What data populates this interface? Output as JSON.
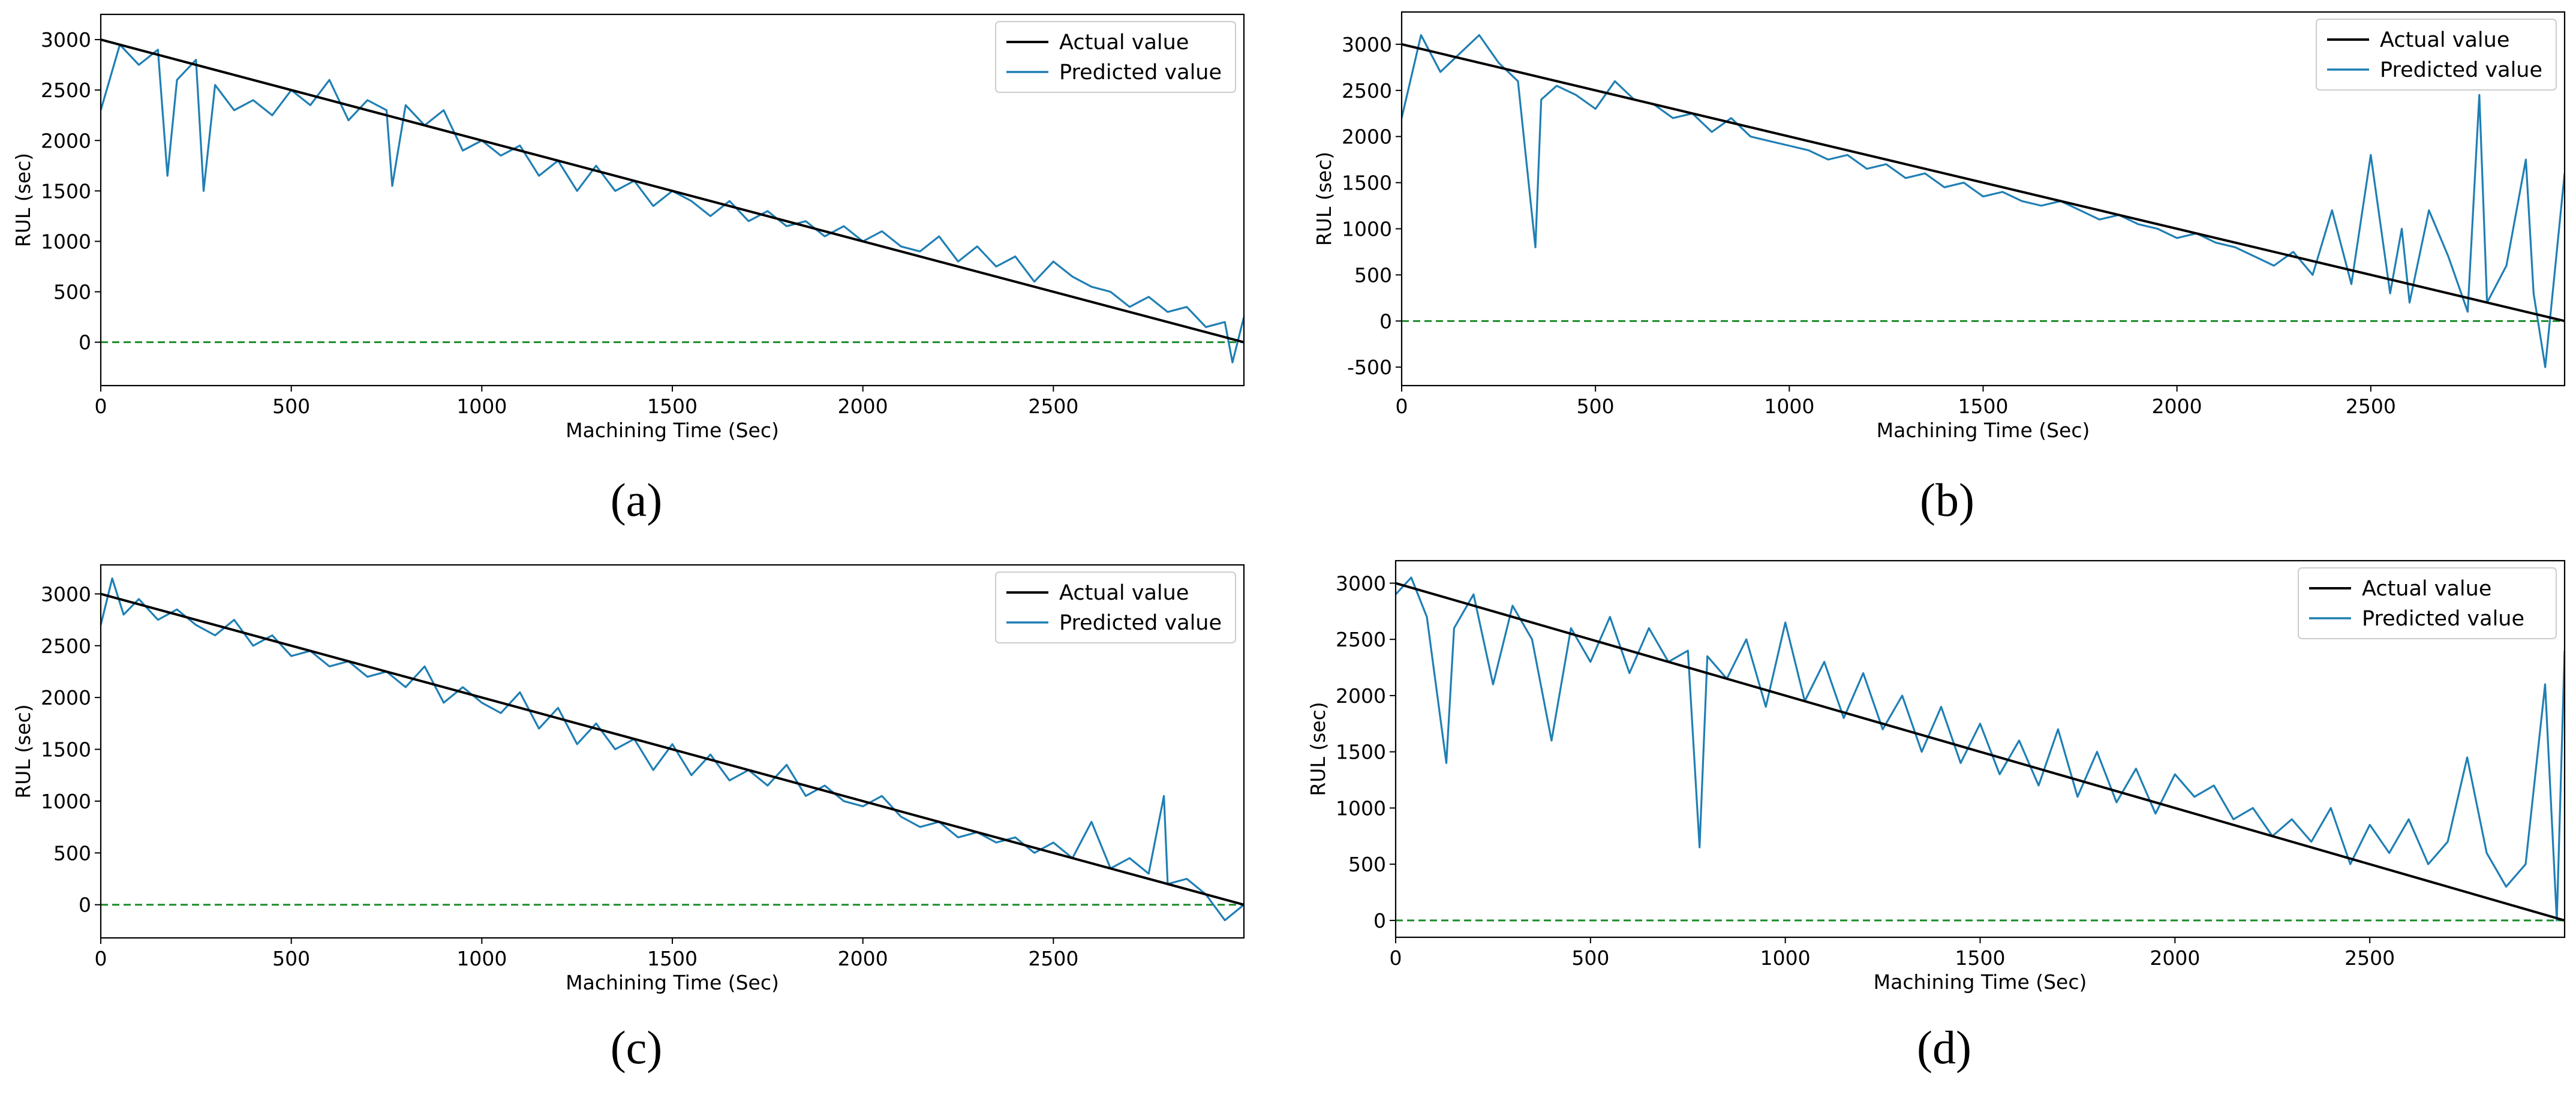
{
  "chart_data": [
    {
      "type": "line",
      "panel_label": "(a)",
      "xlabel": "Machining Time (Sec)",
      "ylabel": "RUL (sec)",
      "xlim": [
        0,
        3000
      ],
      "ylim": [
        -430,
        3250
      ],
      "x_ticks": [
        0,
        500,
        1000,
        1500,
        2000,
        2500
      ],
      "y_ticks": [
        0,
        500,
        1000,
        1500,
        2000,
        2500,
        3000
      ],
      "legend": [
        "Actual value",
        "Predicted value"
      ],
      "legend_position": "top-right",
      "colors": {
        "actual": "#000000",
        "predicted": "#1f7fb4",
        "reference": "#1a8c2a"
      },
      "reference_line": {
        "y": 0,
        "style": "dashed"
      },
      "series": [
        {
          "name": "Actual value",
          "x": [
            0,
            3000
          ],
          "values": [
            3000,
            0
          ]
        },
        {
          "name": "Predicted value",
          "x": [
            0,
            50,
            100,
            150,
            175,
            200,
            250,
            270,
            300,
            350,
            400,
            450,
            500,
            550,
            600,
            650,
            700,
            750,
            765,
            800,
            850,
            900,
            950,
            1000,
            1050,
            1100,
            1150,
            1200,
            1250,
            1300,
            1350,
            1400,
            1450,
            1500,
            1550,
            1600,
            1650,
            1700,
            1750,
            1800,
            1850,
            1900,
            1950,
            2000,
            2050,
            2100,
            2150,
            2200,
            2250,
            2300,
            2350,
            2400,
            2450,
            2500,
            2550,
            2600,
            2650,
            2700,
            2750,
            2800,
            2850,
            2900,
            2950,
            2970,
            3000
          ],
          "values": [
            2300,
            2950,
            2750,
            2900,
            1650,
            2600,
            2800,
            1500,
            2550,
            2300,
            2400,
            2250,
            2500,
            2350,
            2600,
            2200,
            2400,
            2300,
            1550,
            2350,
            2150,
            2300,
            1900,
            2000,
            1850,
            1950,
            1650,
            1800,
            1500,
            1750,
            1500,
            1600,
            1350,
            1500,
            1400,
            1250,
            1400,
            1200,
            1300,
            1150,
            1200,
            1050,
            1150,
            1000,
            1100,
            950,
            900,
            1050,
            800,
            950,
            750,
            850,
            600,
            800,
            650,
            550,
            500,
            350,
            450,
            300,
            350,
            150,
            200,
            -200,
            250
          ]
        }
      ]
    },
    {
      "type": "line",
      "panel_label": "(b)",
      "xlabel": "Machining Time (Sec)",
      "ylabel": "RUL (sec)",
      "xlim": [
        0,
        3000
      ],
      "ylim": [
        -700,
        3350
      ],
      "x_ticks": [
        0,
        500,
        1000,
        1500,
        2000,
        2500
      ],
      "y_ticks": [
        -500,
        0,
        500,
        1000,
        1500,
        2000,
        2500,
        3000
      ],
      "legend": [
        "Actual value",
        "Predicted value"
      ],
      "legend_position": "top-right",
      "colors": {
        "actual": "#000000",
        "predicted": "#1f7fb4",
        "reference": "#1a8c2a"
      },
      "reference_line": {
        "y": 0,
        "style": "dashed"
      },
      "series": [
        {
          "name": "Actual value",
          "x": [
            0,
            3000
          ],
          "values": [
            3000,
            0
          ]
        },
        {
          "name": "Predicted value",
          "x": [
            0,
            50,
            100,
            150,
            200,
            250,
            300,
            345,
            360,
            400,
            450,
            500,
            550,
            600,
            650,
            700,
            750,
            800,
            850,
            900,
            950,
            1000,
            1050,
            1100,
            1150,
            1200,
            1250,
            1300,
            1350,
            1400,
            1450,
            1500,
            1550,
            1600,
            1650,
            1700,
            1750,
            1800,
            1850,
            1900,
            1950,
            2000,
            2050,
            2100,
            2150,
            2200,
            2250,
            2300,
            2350,
            2400,
            2450,
            2500,
            2550,
            2580,
            2600,
            2650,
            2700,
            2750,
            2780,
            2800,
            2850,
            2900,
            2920,
            2950,
            3000
          ],
          "values": [
            2200,
            3100,
            2700,
            2900,
            3100,
            2800,
            2600,
            800,
            2400,
            2550,
            2450,
            2300,
            2600,
            2400,
            2350,
            2200,
            2250,
            2050,
            2200,
            2000,
            1950,
            1900,
            1850,
            1750,
            1800,
            1650,
            1700,
            1550,
            1600,
            1450,
            1500,
            1350,
            1400,
            1300,
            1250,
            1300,
            1200,
            1100,
            1150,
            1050,
            1000,
            900,
            950,
            850,
            800,
            700,
            600,
            750,
            500,
            1200,
            400,
            1800,
            300,
            1000,
            200,
            1200,
            700,
            100,
            2450,
            200,
            600,
            1750,
            300,
            -500,
            1600
          ]
        }
      ]
    },
    {
      "type": "line",
      "panel_label": "(c)",
      "xlabel": "Machining Time (Sec)",
      "ylabel": "RUL (sec)",
      "xlim": [
        0,
        3000
      ],
      "ylim": [
        -320,
        3280
      ],
      "x_ticks": [
        0,
        500,
        1000,
        1500,
        2000,
        2500
      ],
      "y_ticks": [
        0,
        500,
        1000,
        1500,
        2000,
        2500,
        3000
      ],
      "legend": [
        "Actual value",
        "Predicted value"
      ],
      "legend_position": "top-right",
      "colors": {
        "actual": "#000000",
        "predicted": "#1f7fb4",
        "reference": "#1a8c2a"
      },
      "reference_line": {
        "y": 0,
        "style": "dashed"
      },
      "series": [
        {
          "name": "Actual value",
          "x": [
            0,
            3000
          ],
          "values": [
            3000,
            0
          ]
        },
        {
          "name": "Predicted value",
          "x": [
            0,
            30,
            60,
            100,
            150,
            200,
            250,
            300,
            350,
            400,
            450,
            500,
            550,
            600,
            650,
            700,
            750,
            800,
            850,
            900,
            950,
            1000,
            1050,
            1100,
            1150,
            1200,
            1250,
            1300,
            1350,
            1400,
            1450,
            1500,
            1550,
            1600,
            1650,
            1700,
            1750,
            1800,
            1850,
            1900,
            1950,
            2000,
            2050,
            2100,
            2150,
            2200,
            2250,
            2300,
            2350,
            2400,
            2450,
            2500,
            2550,
            2600,
            2650,
            2700,
            2750,
            2790,
            2800,
            2850,
            2900,
            2950,
            3000
          ],
          "values": [
            2700,
            3150,
            2800,
            2950,
            2750,
            2850,
            2700,
            2600,
            2750,
            2500,
            2600,
            2400,
            2450,
            2300,
            2350,
            2200,
            2250,
            2100,
            2300,
            1950,
            2100,
            1950,
            1850,
            2050,
            1700,
            1900,
            1550,
            1750,
            1500,
            1600,
            1300,
            1550,
            1250,
            1450,
            1200,
            1300,
            1150,
            1350,
            1050,
            1150,
            1000,
            950,
            1050,
            850,
            750,
            800,
            650,
            700,
            600,
            650,
            500,
            600,
            450,
            800,
            350,
            450,
            300,
            1050,
            200,
            250,
            100,
            -150,
            0
          ]
        }
      ]
    },
    {
      "type": "line",
      "panel_label": "(d)",
      "xlabel": "Machining Time (Sec)",
      "ylabel": "RUL (sec)",
      "xlim": [
        0,
        3000
      ],
      "ylim": [
        -150,
        3200
      ],
      "x_ticks": [
        0,
        500,
        1000,
        1500,
        2000,
        2500
      ],
      "y_ticks": [
        0,
        500,
        1000,
        1500,
        2000,
        2500,
        3000
      ],
      "legend": [
        "Actual value",
        "Predicted value"
      ],
      "legend_position": "top-right",
      "colors": {
        "actual": "#000000",
        "predicted": "#1f7fb4",
        "reference": "#1a8c2a"
      },
      "reference_line": {
        "y": 0,
        "style": "dashed"
      },
      "series": [
        {
          "name": "Actual value",
          "x": [
            0,
            3000
          ],
          "values": [
            3000,
            0
          ]
        },
        {
          "name": "Predicted value",
          "x": [
            0,
            40,
            80,
            130,
            150,
            200,
            250,
            300,
            350,
            400,
            450,
            500,
            550,
            600,
            650,
            700,
            750,
            780,
            800,
            850,
            900,
            950,
            1000,
            1050,
            1100,
            1150,
            1200,
            1250,
            1300,
            1350,
            1400,
            1450,
            1500,
            1550,
            1600,
            1650,
            1700,
            1750,
            1800,
            1850,
            1900,
            1950,
            2000,
            2050,
            2100,
            2150,
            2200,
            2250,
            2300,
            2350,
            2400,
            2450,
            2500,
            2550,
            2600,
            2650,
            2700,
            2750,
            2800,
            2850,
            2900,
            2950,
            2980,
            3000
          ],
          "values": [
            2900,
            3050,
            2700,
            1400,
            2600,
            2900,
            2100,
            2800,
            2500,
            1600,
            2600,
            2300,
            2700,
            2200,
            2600,
            2300,
            2400,
            650,
            2350,
            2150,
            2500,
            1900,
            2650,
            1950,
            2300,
            1800,
            2200,
            1700,
            2000,
            1500,
            1900,
            1400,
            1750,
            1300,
            1600,
            1200,
            1700,
            1100,
            1500,
            1050,
            1350,
            950,
            1300,
            1100,
            1200,
            900,
            1000,
            750,
            900,
            700,
            1000,
            500,
            850,
            600,
            900,
            500,
            700,
            1450,
            600,
            300,
            500,
            2100,
            0,
            2400
          ]
        }
      ]
    }
  ]
}
